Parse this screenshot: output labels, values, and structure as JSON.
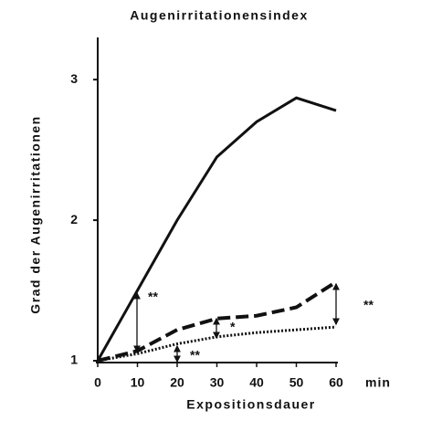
{
  "chart_data": {
    "type": "line",
    "title": "Augenirritationensindex",
    "x_label": "Expositionsdauer",
    "x_unit": "min",
    "y_label": "Grad der Augenirritationen",
    "x": [
      0,
      10,
      20,
      30,
      40,
      50,
      60
    ],
    "series": [
      {
        "color": "#111111",
        "style": "solid",
        "values": [
          1,
          1.5,
          2.0,
          2.45,
          2.7,
          2.87,
          2.78
        ]
      },
      {
        "color": "#111111",
        "style": "dashed",
        "values": [
          1,
          1.07,
          1.22,
          1.3,
          1.32,
          1.38,
          1.56
        ]
      },
      {
        "color": "#111111",
        "style": "dotted",
        "values": [
          1,
          1.05,
          1.12,
          1.17,
          1.2,
          1.22,
          1.24
        ]
      }
    ],
    "annotations": [
      "**",
      "*",
      "**",
      "**"
    ],
    "xlim": [
      0,
      60
    ],
    "xticks": [
      0,
      10,
      20,
      30,
      40,
      50,
      60
    ],
    "ylim": [
      1,
      3.3
    ],
    "yticks": [
      1,
      2,
      3
    ],
    "grid": false
  }
}
